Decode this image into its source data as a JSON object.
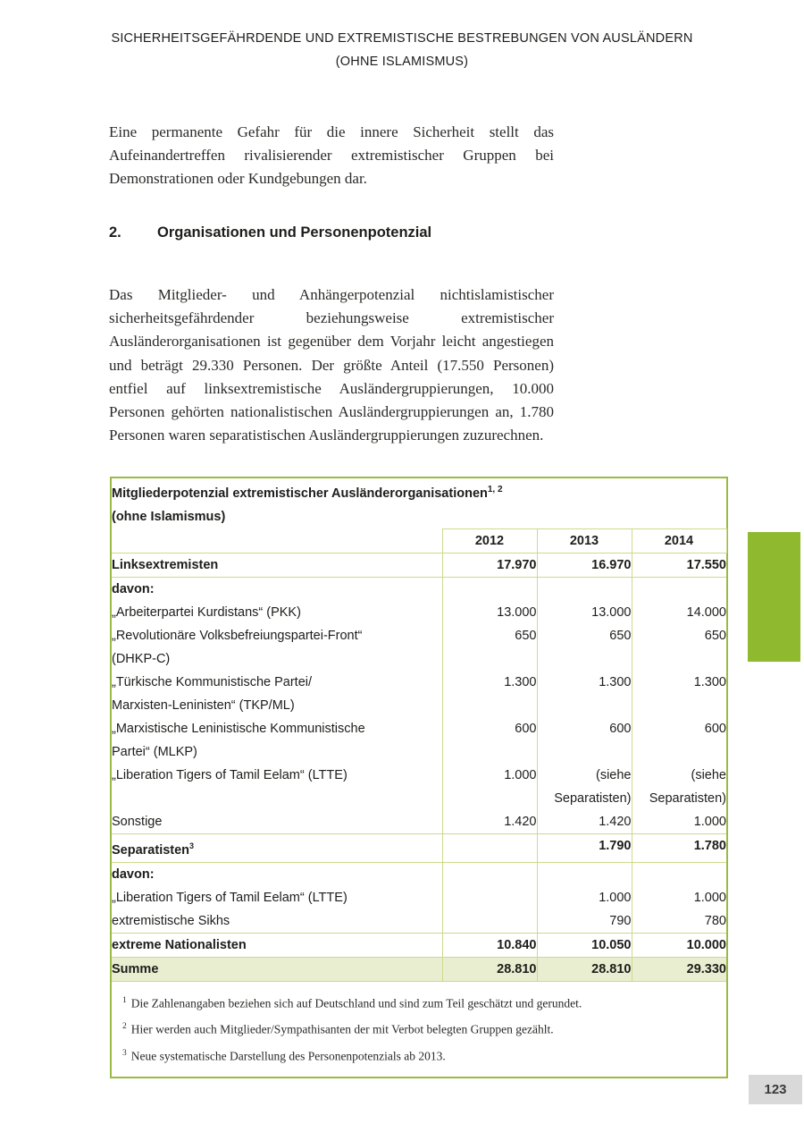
{
  "colors": {
    "table_border": "#9bba45",
    "table_grid": "#cdd98b",
    "summe_bg": "#e9eed1",
    "accent_green": "#8fb92e",
    "pagenum_bg": "#d9d9d9"
  },
  "header": {
    "line1": "SICHERHEITSGEFÄHRDENDE UND EXTREMISTISCHE BESTREBUNGEN VON AUSLÄNDERN",
    "line2": "(OHNE ISLAMISMUS)"
  },
  "intro": "Eine permanente Gefahr für die innere Sicherheit stellt das Aufeinandertreffen rivalisierender extremistischer Gruppen bei Demonstrationen oder Kundgebungen dar.",
  "section": {
    "number": "2.",
    "title": "Organisationen und Personenpotenzial"
  },
  "body": "Das Mitglieder- und Anhängerpotenzial nichtislamistischer sicherheitsgefährdender beziehungsweise extremistischer Ausländerorganisationen ist gegenüber dem Vorjahr leicht angestiegen und beträgt 29.330 Personen. Der größte Anteil (17.550 Personen) entfiel auf linksextremistische Ausländergruppierungen, 10.000 Personen gehörten nationalistischen Ausländergruppierungen an, 1.780 Personen waren separatistischen Ausländergruppierungen zuzurechnen.",
  "table": {
    "title": "Mitgliederpotenzial extremistischer Ausländerorganisationen",
    "title_sup": "1, 2",
    "subtitle": "(ohne Islamismus)",
    "years": [
      "2012",
      "2013",
      "2014"
    ],
    "rows": [
      {
        "label": "Linksextremisten",
        "v2012": "17.970",
        "v2013": "16.970",
        "v2014": "17.550"
      },
      {
        "label": "davon:",
        "v2012": "",
        "v2013": "",
        "v2014": ""
      },
      {
        "label": "„Arbeiterpartei Kurdistans“ (PKK)",
        "v2012": "13.000",
        "v2013": "13.000",
        "v2014": "14.000"
      },
      {
        "label": "„Revolutionäre Volksbefreiungspartei-Front“\n(DHKP-C)",
        "v2012": "650",
        "v2013": "650",
        "v2014": "650"
      },
      {
        "label": "„Türkische Kommunistische Partei/\nMarxisten-Leninisten“ (TKP/ML)",
        "v2012": "1.300",
        "v2013": "1.300",
        "v2014": "1.300"
      },
      {
        "label": "„Marxistische Leninistische Kommunistische\nPartei“ (MLKP)",
        "v2012": "600",
        "v2013": "600",
        "v2014": "600"
      },
      {
        "label": "„Liberation Tigers of Tamil Eelam“ (LTTE)",
        "v2012": "1.000",
        "v2013": "(siehe Separatisten)",
        "v2014": "(siehe Separatisten)"
      },
      {
        "label": "Sonstige",
        "v2012": "1.420",
        "v2013": "1.420",
        "v2014": "1.000"
      },
      {
        "label": "Separatisten",
        "sup": "3",
        "v2012": "",
        "v2013": "1.790",
        "v2014": "1.780"
      },
      {
        "label": "davon:",
        "v2012": "",
        "v2013": "",
        "v2014": ""
      },
      {
        "label": "„Liberation Tigers of Tamil Eelam“ (LTTE)",
        "v2012": "",
        "v2013": "1.000",
        "v2014": "1.000"
      },
      {
        "label": "extremistische Sikhs",
        "v2012": "",
        "v2013": "790",
        "v2014": "780"
      },
      {
        "label": "extreme Nationalisten",
        "v2012": "10.840",
        "v2013": "10.050",
        "v2014": "10.000"
      },
      {
        "label": "Summe",
        "v2012": "28.810",
        "v2013": "28.810",
        "v2014": "29.330"
      }
    ],
    "footnotes": [
      {
        "marker": "1",
        "text": "Die Zahlenangaben beziehen sich auf Deutschland und sind zum Teil geschätzt und gerundet."
      },
      {
        "marker": "2",
        "text": "Hier werden auch Mitglieder/Sympathisanten der mit Verbot belegten Gruppen gezählt."
      },
      {
        "marker": "3",
        "text": "Neue systematische Darstellung des Personenpotenzials ab 2013."
      }
    ]
  },
  "page_number": "123"
}
